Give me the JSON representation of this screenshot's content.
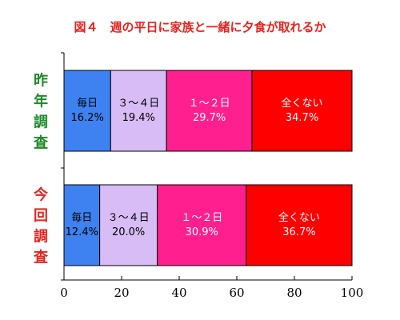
{
  "chart_data": {
    "type": "bar",
    "orientation": "horizontal",
    "stacked": true,
    "title": "図４　週の平日に家族と一緒に夕食が取れるか",
    "categories": [
      "昨年調査",
      "今回調査"
    ],
    "series": [
      {
        "name": "毎日",
        "values": [
          16.2,
          12.4
        ]
      },
      {
        "name": "３～４日",
        "values": [
          19.4,
          20.0
        ]
      },
      {
        "name": "１～２日",
        "values": [
          29.7,
          30.9
        ]
      },
      {
        "name": "全くない",
        "values": [
          34.7,
          36.7
        ]
      }
    ],
    "value_labels": [
      [
        "16.2%",
        "19.4%",
        "29.7%",
        "34.7%"
      ],
      [
        "12.4%",
        "20.0%",
        "30.9%",
        "36.7%"
      ]
    ],
    "xlim": [
      0,
      100
    ],
    "xticks": [
      "0",
      "20",
      "40",
      "60",
      "80",
      "100"
    ],
    "xlabel": "",
    "ylabel": "",
    "grid": false,
    "legend": "none",
    "colors": {
      "title": "#e8231e",
      "category_labels": [
        "#1f8a2a",
        "#e8231e"
      ],
      "series": [
        "#3d82f0",
        "#d7bcf5",
        "#ff1f8e",
        "#ff0000"
      ],
      "series_label_text": [
        "#000000",
        "#000000",
        "#ffffff",
        "#ffffff"
      ],
      "bar_border": "#000000",
      "axis": "#000000"
    }
  }
}
